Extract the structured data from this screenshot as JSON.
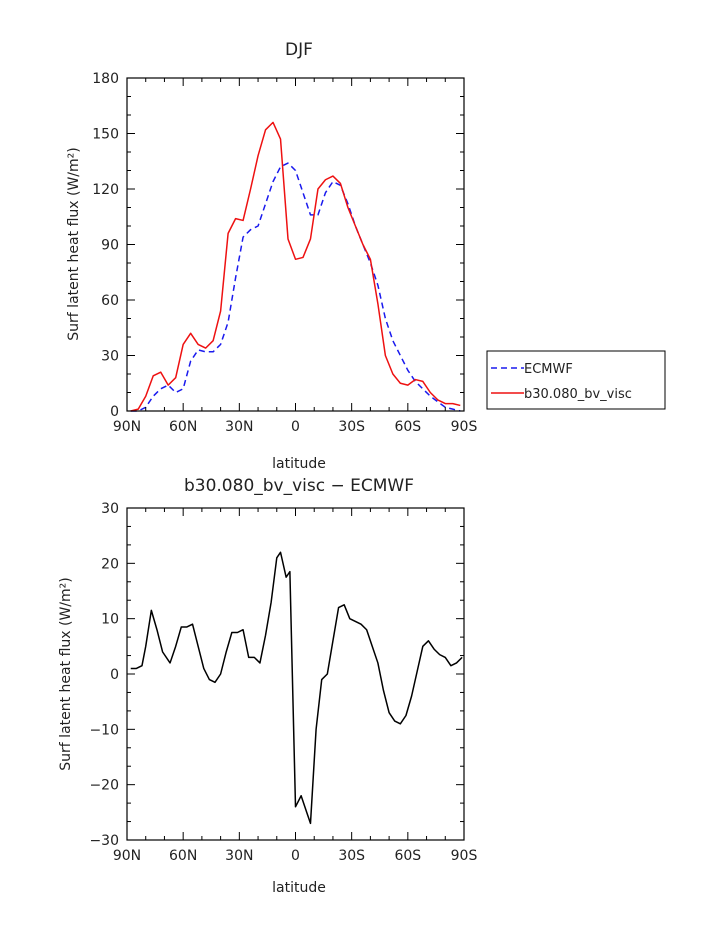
{
  "chart_data": [
    {
      "type": "line",
      "title": "DJF",
      "xlabel": "latitude",
      "ylabel": "Surf latent heat flux (W/m²)",
      "xlim": [
        90,
        -90
      ],
      "ylim": [
        0,
        180
      ],
      "xticks": [
        90,
        60,
        30,
        0,
        -30,
        -60,
        -90
      ],
      "xtick_labels": [
        "90N",
        "60N",
        "30N",
        "0",
        "30S",
        "60S",
        "90S"
      ],
      "yticks": [
        0,
        30,
        60,
        90,
        120,
        150,
        180
      ],
      "ytick_labels": [
        "0",
        "30",
        "60",
        "90",
        "120",
        "150",
        "180"
      ],
      "grid": false,
      "legend_position": "right",
      "series": [
        {
          "name": "ECMWF",
          "color": "#1a1aee",
          "dash": "dashed",
          "x": [
            88,
            84,
            80,
            76,
            72,
            68,
            64,
            60,
            56,
            52,
            48,
            44,
            40,
            36,
            32,
            28,
            24,
            20,
            16,
            12,
            8,
            4,
            0,
            -4,
            -8,
            -12,
            -16,
            -20,
            -24,
            -28,
            -32,
            -36,
            -40,
            -44,
            -48,
            -52,
            -56,
            -60,
            -64,
            -68,
            -72,
            -76,
            -80,
            -84,
            -88
          ],
          "y": [
            0,
            0,
            2,
            8,
            12,
            14,
            10,
            12,
            27,
            33,
            32,
            32,
            36,
            48,
            72,
            94,
            98,
            100,
            112,
            124,
            132,
            134,
            130,
            118,
            106,
            106,
            118,
            124,
            122,
            112,
            100,
            90,
            80,
            68,
            50,
            38,
            30,
            22,
            16,
            12,
            8,
            5,
            2,
            1,
            0
          ]
        },
        {
          "name": "b30.080_bv_visc",
          "color": "#ee1111",
          "dash": "solid",
          "x": [
            88,
            84,
            80,
            76,
            72,
            68,
            64,
            60,
            56,
            52,
            48,
            44,
            40,
            36,
            32,
            28,
            24,
            20,
            16,
            12,
            8,
            4,
            0,
            -4,
            -8,
            -12,
            -16,
            -20,
            -24,
            -28,
            -32,
            -36,
            -40,
            -44,
            -48,
            -52,
            -56,
            -60,
            -64,
            -68,
            -72,
            -76,
            -80,
            -84,
            -88
          ],
          "y": [
            0,
            1,
            8,
            19,
            21,
            14,
            18,
            36,
            42,
            36,
            34,
            38,
            54,
            96,
            104,
            103,
            120,
            138,
            152,
            156,
            147,
            93,
            82,
            83,
            93,
            120,
            125,
            127,
            123,
            110,
            100,
            90,
            82,
            58,
            30,
            20,
            15,
            14,
            17,
            16,
            10,
            6,
            4,
            4,
            3
          ]
        }
      ]
    },
    {
      "type": "line",
      "title": "b30.080_bv_visc − ECMWF",
      "xlabel": "latitude",
      "ylabel": "Surf latent heat flux (W/m²)",
      "xlim": [
        90,
        -90
      ],
      "ylim": [
        -30,
        30
      ],
      "xticks": [
        90,
        60,
        30,
        0,
        -30,
        -60,
        -90
      ],
      "xtick_labels": [
        "90N",
        "60N",
        "30N",
        "0",
        "30S",
        "60S",
        "90S"
      ],
      "yticks": [
        -30,
        -20,
        -10,
        0,
        10,
        20,
        30
      ],
      "ytick_labels": [
        "−30",
        "−20",
        "−10",
        "0",
        "10",
        "20",
        "30"
      ],
      "grid": false,
      "series": [
        {
          "color": "#000000",
          "dash": "solid",
          "x": [
            88,
            85,
            82,
            80,
            77,
            74,
            71,
            67,
            64,
            61,
            58,
            55,
            52,
            49,
            46,
            43,
            40,
            37,
            34,
            31,
            28,
            25,
            22,
            19,
            16,
            13,
            10,
            8,
            5,
            3,
            0,
            -3,
            -6,
            -8,
            -11,
            -14,
            -17,
            -20,
            -23,
            -26,
            -29,
            -32,
            -35,
            -38,
            -41,
            -44,
            -47,
            -50,
            -53,
            -56,
            -59,
            -62,
            -65,
            -68,
            -71,
            -74,
            -77,
            -80,
            -83,
            -86,
            -89
          ],
          "y": [
            1,
            1,
            1.5,
            5,
            11.5,
            8,
            4,
            2,
            5,
            8.5,
            8.5,
            9,
            5,
            1,
            -1,
            -1.5,
            0,
            4,
            7.5,
            7.5,
            8,
            3,
            3,
            2,
            7,
            13,
            21,
            22,
            17.5,
            18.5,
            -24,
            -22,
            -25,
            -27,
            -10,
            -1,
            0,
            6,
            12,
            12.5,
            10,
            9.5,
            9,
            8,
            5,
            2,
            -3,
            -7,
            -8.5,
            -9,
            -7.5,
            -4,
            0.5,
            5,
            6,
            4.5,
            3.5,
            3,
            1.5,
            2,
            3
          ]
        }
      ]
    }
  ]
}
